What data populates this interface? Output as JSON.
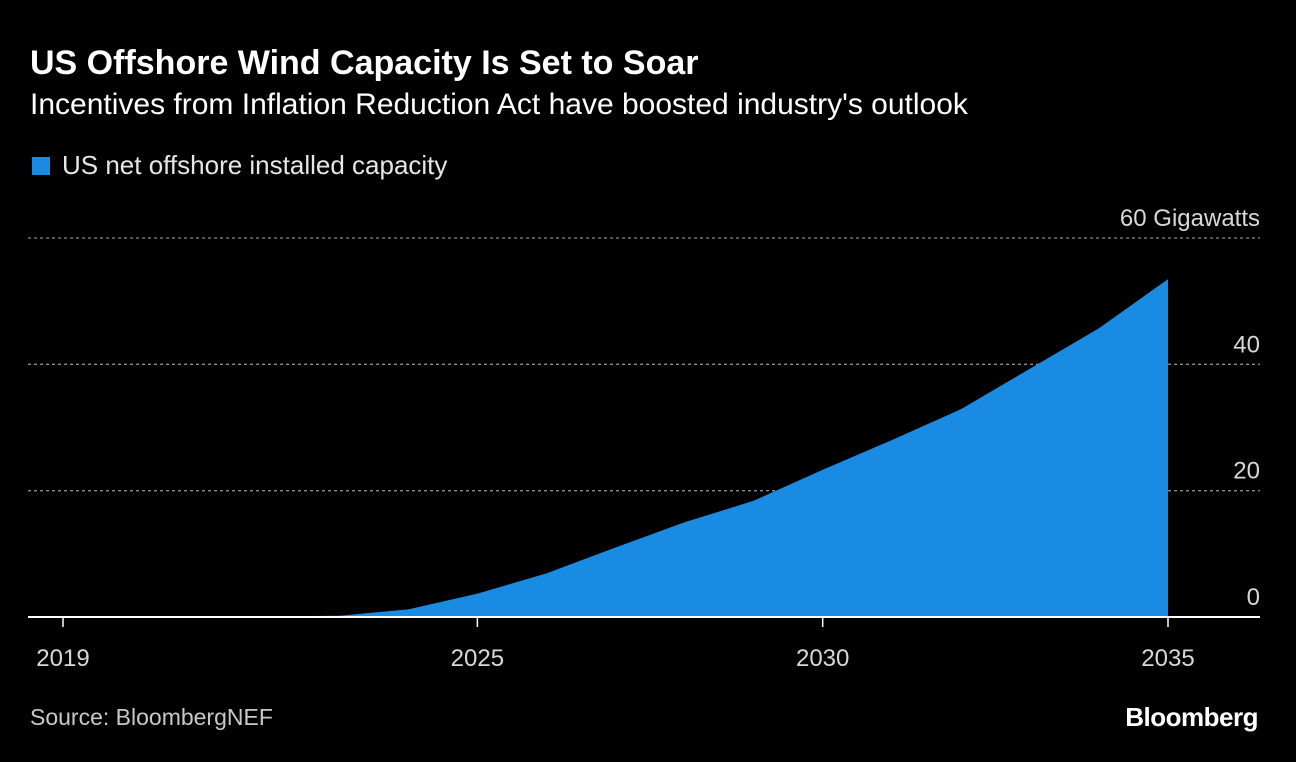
{
  "header": {
    "title": "US Offshore Wind Capacity Is Set to Soar",
    "subtitle": "Incentives from Inflation Reduction Act have boosted industry's outlook"
  },
  "footer": {
    "source": "Source: BloombergNEF",
    "brand": "Bloomberg"
  },
  "colors": {
    "background": "#000000",
    "area": "#1a8be3",
    "grid": "#8a8a8a",
    "text": "#ffffff",
    "muted": "#c8c8c8"
  },
  "chart_data": {
    "type": "area",
    "title": "US Offshore Wind Capacity Is Set to Soar",
    "subtitle": "Incentives from Inflation Reduction Act have boosted industry's outlook",
    "xlabel": "",
    "ylabel": "Gigawatts",
    "y_unit": "Gigawatts",
    "xlim": [
      2019,
      2036.3
    ],
    "ylim": [
      0,
      60
    ],
    "y_ticks": [
      0,
      20,
      40,
      60
    ],
    "y_tick_labels": [
      "0",
      "20",
      "40",
      "60 Gigawatts"
    ],
    "x_ticks": [
      2019,
      2025,
      2030,
      2035
    ],
    "x_tick_labels": [
      "2019",
      "2025",
      "2030",
      "2035"
    ],
    "grid": true,
    "legend_position": "top-left",
    "series": [
      {
        "name": "US net offshore installed capacity",
        "color": "#1a8be3",
        "x": [
          2019,
          2020,
          2021,
          2022,
          2023,
          2024,
          2025,
          2026,
          2027,
          2028,
          2029,
          2030,
          2031,
          2032,
          2033,
          2034,
          2035
        ],
        "values": [
          0.03,
          0.03,
          0.04,
          0.1,
          0.2,
          1.2,
          3.7,
          6.9,
          11.0,
          15.0,
          18.4,
          23.3,
          28.0,
          32.9,
          39.3,
          45.7,
          53.5
        ]
      }
    ]
  }
}
